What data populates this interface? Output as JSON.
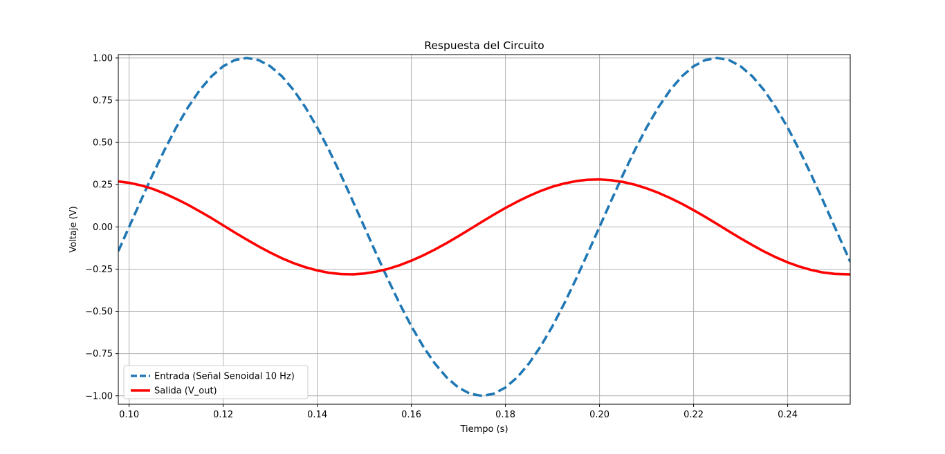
{
  "chart_data": {
    "type": "line",
    "title": "Respuesta del Circuito",
    "xlabel": "Tiempo (s)",
    "ylabel": "Voltaje (V)",
    "xlim": [
      0.0977,
      0.2533
    ],
    "ylim": [
      -1.05,
      1.02
    ],
    "grid": true,
    "legend_position": "lower-left",
    "x_ticks": [
      "0.10",
      "0.12",
      "0.14",
      "0.16",
      "0.18",
      "0.20",
      "0.22",
      "0.24"
    ],
    "x_tick_values": [
      0.1,
      0.12,
      0.14,
      0.16,
      0.18,
      0.2,
      0.22,
      0.24
    ],
    "y_ticks": [
      "1.00",
      "0.75",
      "0.50",
      "0.25",
      "0.00",
      "−0.25",
      "−0.50",
      "−0.75",
      "−1.00"
    ],
    "y_tick_values": [
      1.0,
      0.75,
      0.5,
      0.25,
      0.0,
      -0.25,
      -0.5,
      -0.75,
      -1.0
    ],
    "series": [
      {
        "name": "Entrada (Señal Senoidal 10 Hz)",
        "color": "#1f77b4",
        "style": "dashed",
        "x": [
          0.0977,
          0.1,
          0.1025,
          0.105,
          0.1075,
          0.11,
          0.1125,
          0.115,
          0.1175,
          0.12,
          0.1225,
          0.125,
          0.1275,
          0.13,
          0.1325,
          0.135,
          0.1375,
          0.14,
          0.1425,
          0.145,
          0.1475,
          0.15,
          0.1525,
          0.155,
          0.1575,
          0.16,
          0.1625,
          0.165,
          0.1675,
          0.17,
          0.1725,
          0.175,
          0.1775,
          0.18,
          0.1825,
          0.185,
          0.1875,
          0.19,
          0.1925,
          0.195,
          0.1975,
          0.2,
          0.2025,
          0.205,
          0.2075,
          0.21,
          0.2125,
          0.215,
          0.2175,
          0.22,
          0.2225,
          0.225,
          0.2275,
          0.23,
          0.2325,
          0.235,
          0.2375,
          0.24,
          0.2425,
          0.245,
          0.2475,
          0.25,
          0.2533
        ],
        "y": [
          -0.144,
          0.0,
          0.156,
          0.309,
          0.454,
          0.588,
          0.707,
          0.809,
          0.891,
          0.951,
          0.988,
          1.0,
          0.988,
          0.951,
          0.891,
          0.809,
          0.707,
          0.588,
          0.454,
          0.309,
          0.156,
          0.0,
          -0.156,
          -0.309,
          -0.454,
          -0.588,
          -0.707,
          -0.809,
          -0.891,
          -0.951,
          -0.988,
          -1.0,
          -0.988,
          -0.951,
          -0.891,
          -0.809,
          -0.707,
          -0.588,
          -0.454,
          -0.309,
          -0.156,
          0.0,
          0.156,
          0.309,
          0.454,
          0.588,
          0.707,
          0.809,
          0.891,
          0.951,
          0.988,
          1.0,
          0.988,
          0.951,
          0.891,
          0.809,
          0.707,
          0.588,
          0.454,
          0.309,
          0.156,
          0.0,
          -0.206
        ]
      },
      {
        "name": "Salida (V_out)",
        "color": "#ff0000",
        "style": "solid",
        "x": [
          0.0977,
          0.1,
          0.1025,
          0.105,
          0.1075,
          0.11,
          0.1125,
          0.115,
          0.1175,
          0.12,
          0.1225,
          0.125,
          0.1275,
          0.13,
          0.1325,
          0.135,
          0.1375,
          0.14,
          0.1425,
          0.145,
          0.1475,
          0.15,
          0.1525,
          0.155,
          0.1575,
          0.16,
          0.1625,
          0.165,
          0.1675,
          0.17,
          0.1725,
          0.175,
          0.1775,
          0.18,
          0.1825,
          0.185,
          0.1875,
          0.19,
          0.1925,
          0.195,
          0.1975,
          0.2,
          0.2025,
          0.205,
          0.2075,
          0.21,
          0.2125,
          0.215,
          0.2175,
          0.22,
          0.2225,
          0.225,
          0.2275,
          0.23,
          0.2325,
          0.235,
          0.2375,
          0.24,
          0.2425,
          0.245,
          0.2475,
          0.25,
          0.2533
        ],
        "y": [
          0.269,
          0.261,
          0.246,
          0.225,
          0.198,
          0.166,
          0.131,
          0.092,
          0.052,
          0.009,
          -0.034,
          -0.075,
          -0.115,
          -0.152,
          -0.186,
          -0.215,
          -0.239,
          -0.258,
          -0.272,
          -0.279,
          -0.281,
          -0.276,
          -0.265,
          -0.249,
          -0.227,
          -0.2,
          -0.169,
          -0.134,
          -0.096,
          -0.055,
          -0.013,
          0.03,
          0.072,
          0.112,
          0.149,
          0.183,
          0.213,
          0.238,
          0.257,
          0.271,
          0.279,
          0.281,
          0.276,
          0.266,
          0.25,
          0.228,
          0.202,
          0.171,
          0.137,
          0.099,
          0.059,
          0.017,
          -0.026,
          -0.068,
          -0.108,
          -0.146,
          -0.18,
          -0.21,
          -0.235,
          -0.255,
          -0.27,
          -0.278,
          -0.281
        ]
      }
    ]
  }
}
